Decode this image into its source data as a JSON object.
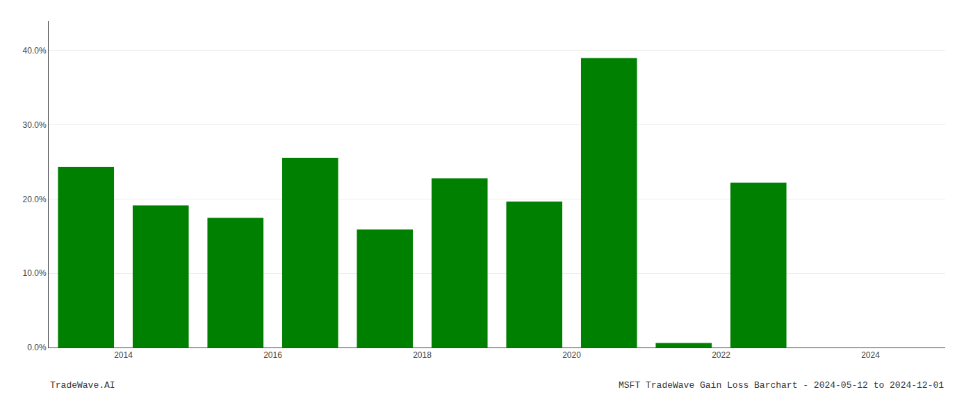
{
  "chart_data": {
    "type": "bar",
    "title": "MSFT TradeWave Gain Loss Barchart - 2024-05-12 to 2024-12-01",
    "annotations": [
      "TradeWave.AI"
    ],
    "x": [
      2013,
      2014,
      2015,
      2016,
      2017,
      2018,
      2019,
      2020,
      2021,
      2022,
      2023
    ],
    "values": [
      0.2435,
      0.1915,
      0.1745,
      0.2555,
      0.159,
      0.228,
      0.1965,
      0.39,
      0.006,
      0.222,
      0.0
    ],
    "color": "#008000",
    "xlim": [
      2012.5,
      2024.5
    ],
    "xticks": [
      {
        "value": 2013.5,
        "label": "2014"
      },
      {
        "value": 2015.5,
        "label": "2016"
      },
      {
        "value": 2017.5,
        "label": "2018"
      },
      {
        "value": 2019.5,
        "label": "2020"
      },
      {
        "value": 2021.5,
        "label": "2022"
      },
      {
        "value": 2023.5,
        "label": "2024"
      }
    ],
    "ylim": [
      0,
      0.44
    ],
    "yticks": [
      {
        "value": 0.0,
        "label": "0.0%"
      },
      {
        "value": 0.1,
        "label": "10.0%"
      },
      {
        "value": 0.2,
        "label": "20.0%"
      },
      {
        "value": 0.3,
        "label": "30.0%"
      },
      {
        "value": 0.4,
        "label": "40.0%"
      }
    ],
    "grid": true
  }
}
